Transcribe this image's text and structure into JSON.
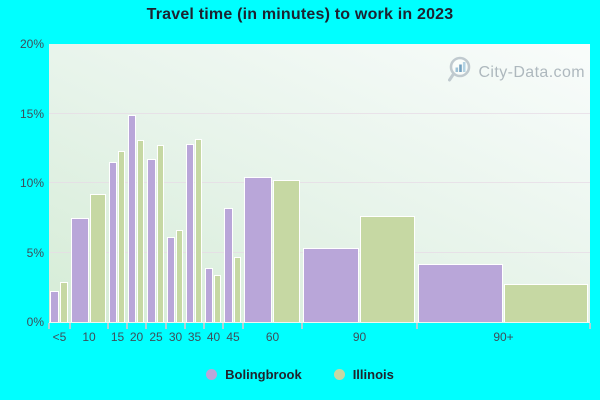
{
  "chart_data": {
    "type": "bar",
    "title": "Travel time (in minutes) to work in 2023",
    "categories": [
      "<5",
      "10",
      "15",
      "20",
      "25",
      "30",
      "35",
      "40",
      "45",
      "60",
      "90",
      "90+"
    ],
    "series": [
      {
        "name": "Bolingbrook",
        "color": "#b9a6d9",
        "values": [
          2.2,
          7.5,
          11.5,
          14.9,
          11.7,
          6.1,
          12.8,
          3.9,
          8.2,
          10.4,
          5.3,
          4.2
        ]
      },
      {
        "name": "Illinois",
        "color": "#c6d8a3",
        "values": [
          2.9,
          9.2,
          12.3,
          13.1,
          12.7,
          6.6,
          13.2,
          3.4,
          4.7,
          10.2,
          7.6,
          2.7
        ]
      }
    ],
    "y_ticks": [
      "0%",
      "5%",
      "10%",
      "15%",
      "20%"
    ],
    "ylim": [
      0,
      20
    ],
    "gridline_values": [
      5,
      10,
      15
    ],
    "xlabel": "",
    "ylabel": "",
    "grid": true,
    "legend_position": "bottom",
    "plot_background": "gradient light-green",
    "page_background": "#00ffff"
  },
  "watermark": {
    "text": "City-Data.com"
  }
}
